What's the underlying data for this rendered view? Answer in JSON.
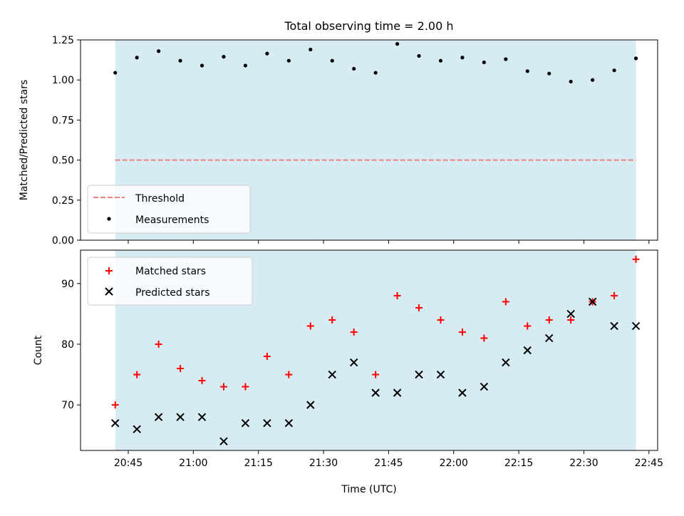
{
  "chart_data": [
    {
      "type": "scatter",
      "title": "Total observing time = 2.00 h",
      "ylabel": "Matched/Predicted stars",
      "xlabel": "",
      "ylim": [
        0,
        1.25
      ],
      "yticks": [
        "0.00",
        "0.25",
        "0.50",
        "0.75",
        "1.00",
        "1.25"
      ],
      "shaded_span": [
        "20:42",
        "22:42"
      ],
      "threshold": {
        "name": "Threshold",
        "value": 0.5,
        "color": "#f08080",
        "style": "dashed"
      },
      "legend": {
        "placement": "lower-left",
        "entries": [
          "Threshold",
          "Measurements"
        ]
      },
      "series": [
        {
          "name": "Measurements",
          "color": "#000000",
          "marker": "dot",
          "x": [
            "20:42",
            "20:47",
            "20:52",
            "20:57",
            "21:02",
            "21:07",
            "21:12",
            "21:17",
            "21:22",
            "21:27",
            "21:32",
            "21:37",
            "21:42",
            "21:47",
            "21:52",
            "21:57",
            "22:02",
            "22:07",
            "22:12",
            "22:17",
            "22:22",
            "22:27",
            "22:32",
            "22:37",
            "22:42"
          ],
          "values": [
            1.045,
            1.14,
            1.18,
            1.12,
            1.09,
            1.145,
            1.09,
            1.165,
            1.12,
            1.19,
            1.12,
            1.07,
            1.045,
            1.225,
            1.15,
            1.12,
            1.14,
            1.11,
            1.13,
            1.055,
            1.04,
            0.99,
            1.0,
            1.06,
            1.135
          ]
        }
      ]
    },
    {
      "type": "scatter",
      "title": "",
      "ylabel": "Count",
      "xlabel": "Time (UTC)",
      "xlim": [
        "20:34",
        "22:47"
      ],
      "ylim": [
        62.5,
        95.5
      ],
      "yticks": [
        "70",
        "80",
        "90"
      ],
      "xticks": [
        "20:45",
        "21:00",
        "21:15",
        "21:30",
        "21:45",
        "22:00",
        "22:15",
        "22:30",
        "22:45"
      ],
      "shaded_span": [
        "20:42",
        "22:42"
      ],
      "legend": {
        "placement": "top-left",
        "entries": [
          "Matched stars",
          "Predicted stars"
        ]
      },
      "series": [
        {
          "name": "Matched stars",
          "color": "#ff0000",
          "marker": "plus",
          "x": [
            "20:42",
            "20:47",
            "20:52",
            "20:57",
            "21:02",
            "21:07",
            "21:12",
            "21:17",
            "21:22",
            "21:27",
            "21:32",
            "21:37",
            "21:42",
            "21:47",
            "21:52",
            "21:57",
            "22:02",
            "22:07",
            "22:12",
            "22:17",
            "22:22",
            "22:27",
            "22:32",
            "22:37",
            "22:42"
          ],
          "values": [
            70,
            75,
            80,
            76,
            74,
            73,
            73,
            78,
            75,
            83,
            84,
            82,
            75,
            88,
            86,
            84,
            82,
            81,
            87,
            83,
            84,
            84,
            87,
            88,
            94
          ]
        },
        {
          "name": "Predicted stars",
          "color": "#000000",
          "marker": "x",
          "x": [
            "20:42",
            "20:47",
            "20:52",
            "20:57",
            "21:02",
            "21:07",
            "21:12",
            "21:17",
            "21:22",
            "21:27",
            "21:32",
            "21:37",
            "21:42",
            "21:47",
            "21:52",
            "21:57",
            "22:02",
            "22:07",
            "22:12",
            "22:17",
            "22:22",
            "22:27",
            "22:32",
            "22:37",
            "22:42"
          ],
          "values": [
            67,
            66,
            68,
            68,
            68,
            64,
            67,
            67,
            67,
            70,
            75,
            77,
            72,
            72,
            75,
            75,
            72,
            73,
            77,
            79,
            81,
            85,
            87,
            83,
            83
          ]
        }
      ]
    }
  ],
  "colors": {
    "span": "#add8e6",
    "span_opacity": 0.5
  }
}
